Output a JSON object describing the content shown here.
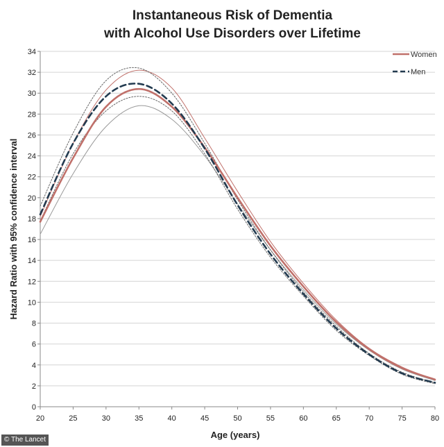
{
  "chart_data": {
    "type": "line",
    "title": [
      "Instantaneous Risk of Dementia",
      "with Alcohol Use Disorders over Lifetime"
    ],
    "xlabel": "Age (years)",
    "ylabel": "Hazard Ratio with 95% confidence interval",
    "xlim": [
      20,
      80
    ],
    "ylim": [
      0,
      34
    ],
    "xticks": [
      20,
      25,
      30,
      35,
      40,
      45,
      50,
      55,
      60,
      65,
      70,
      75,
      80
    ],
    "yticks": [
      0,
      2,
      4,
      6,
      8,
      10,
      12,
      14,
      16,
      18,
      20,
      22,
      24,
      26,
      28,
      30,
      32,
      34
    ],
    "grid": "horizontal",
    "legend": "top-right",
    "x": [
      20,
      25,
      30,
      35,
      40,
      45,
      50,
      55,
      60,
      65,
      70,
      75,
      80
    ],
    "series": [
      {
        "name": "Women",
        "role": "estimate",
        "style": "solid",
        "color": "#c0706a",
        "values": [
          17.7,
          23.8,
          28.7,
          30.4,
          28.7,
          24.8,
          20.0,
          15.4,
          11.5,
          8.1,
          5.5,
          3.7,
          2.6
        ]
      },
      {
        "name": "",
        "role": "ci-upper",
        "style": "thin",
        "color": "#c0706a",
        "values": [
          18.2,
          25.2,
          30.3,
          32.2,
          30.5,
          25.7,
          20.6,
          15.8,
          11.8,
          8.3,
          5.6,
          3.8,
          2.6
        ]
      },
      {
        "name": "",
        "role": "ci-lower",
        "style": "thin",
        "color": "#999999",
        "values": [
          16.5,
          22.3,
          26.8,
          28.8,
          27.5,
          24.0,
          19.4,
          15.0,
          11.2,
          7.9,
          5.4,
          3.6,
          2.5
        ]
      },
      {
        "name": "Men",
        "role": "estimate",
        "style": "dashed",
        "color": "#233b50",
        "values": [
          18.4,
          25.2,
          29.7,
          30.9,
          29.0,
          24.7,
          19.3,
          14.6,
          10.8,
          7.5,
          5.0,
          3.2,
          2.3
        ]
      },
      {
        "name": "",
        "role": "ci-upper",
        "style": "dotted",
        "color": "#666666",
        "values": [
          19.2,
          26.2,
          31.2,
          32.4,
          30.0,
          25.2,
          19.8,
          15.0,
          11.0,
          7.7,
          5.1,
          3.3,
          2.3
        ]
      },
      {
        "name": "",
        "role": "ci-lower",
        "style": "dotted",
        "color": "#666666",
        "values": [
          17.8,
          24.2,
          28.3,
          29.7,
          28.3,
          24.2,
          18.9,
          14.3,
          10.6,
          7.3,
          4.9,
          3.1,
          2.2
        ]
      }
    ],
    "legend_colors": {
      "Women": "#c0706a",
      "Men": "#233b50"
    }
  },
  "credit": "© The Lancet"
}
